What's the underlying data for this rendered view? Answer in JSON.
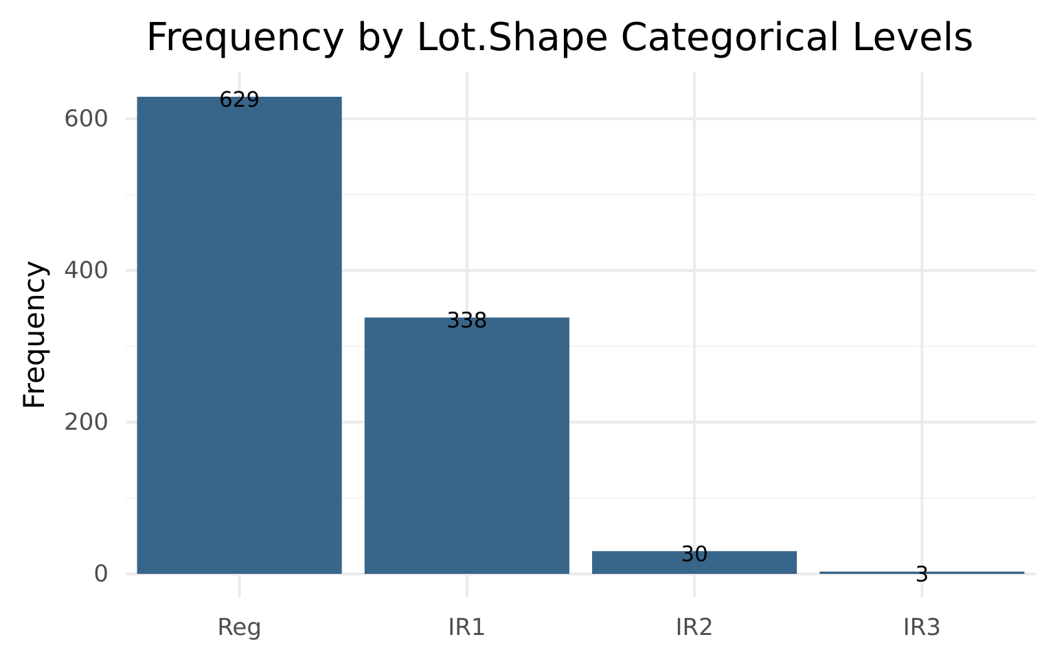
{
  "chart_data": {
    "type": "bar",
    "title": "Frequency by Lot.Shape Categorical Levels",
    "xlabel": "",
    "ylabel": "Frequency",
    "categories": [
      "Reg",
      "IR1",
      "IR2",
      "IR3"
    ],
    "values": [
      629,
      338,
      30,
      3
    ],
    "data_labels": [
      "629",
      "338",
      "30",
      "3"
    ],
    "ylim": [
      0,
      660
    ],
    "y_ticks": [
      0,
      200,
      400,
      600
    ],
    "y_tick_labels": [
      "0",
      "200",
      "400",
      "600"
    ],
    "y_minor_ticks": [
      100,
      300,
      500
    ],
    "grid": true,
    "legend": "none",
    "bar_color": "#38658a"
  }
}
